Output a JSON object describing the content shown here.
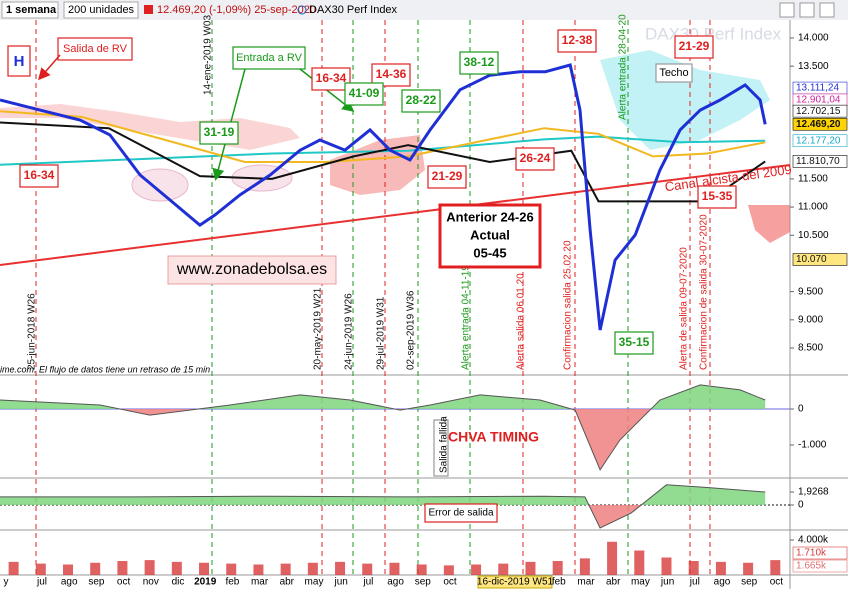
{
  "toolbar": {
    "period": "1 semana",
    "units": "200 unidades",
    "quote": "12.469,20 (-1,09%) 25-sep-2020",
    "instrument": "DAX30 Perf Index"
  },
  "notice": "ime.com. El flujo de datos tiene un retraso de 15 min",
  "watermark": "DAX30 Perf Index",
  "annotations": {
    "h": "H",
    "salida_de_rv": "Salida de RV",
    "entrada_a_rv": "Entrada a RV",
    "techo": "Techo",
    "website": "www.zonadebolsa.es",
    "channel": "Canal alcista del 2009",
    "error_de_salida": "Error de salida",
    "salida_fallida": "Salida fallida",
    "scores": [
      "16-34",
      "31-19",
      "16-34",
      "14-36",
      "41-09",
      "28-22",
      "38-12",
      "12-38",
      "21-29",
      "26-24",
      "21-29",
      "15-35",
      "35-15"
    ],
    "signal_box": [
      "Anterior 24-26",
      "Actual",
      "05-45"
    ]
  },
  "event_labels": [
    "25-jun-2018 W26",
    "14-ene-2019 W03",
    "20-may-2019 W21",
    "24-jun-2019 W26",
    "29-jul-2019 W31",
    "02-sep-2019 W36",
    "Alerta entrada 04-11-19",
    "Alerta salida 06.01.20",
    "Confirmacion salida 25.02.20",
    "Alerta entrada 28-04-20",
    "Alerta de salida 09-07-2020",
    "Confirmacion de salida 30-07-2020"
  ],
  "x_axis": {
    "labels": [
      "y",
      "jul",
      "ago",
      "sep",
      "oct",
      "nov",
      "dic",
      "2019",
      "feb",
      "mar",
      "abr",
      "may",
      "jun",
      "jul",
      "ago",
      "sep",
      "oct",
      null,
      null,
      null,
      "feb",
      "mar",
      "abr",
      "may",
      "jun",
      "jul",
      "ago",
      "sep",
      "oct"
    ],
    "highlight": "16-dic-2019 W51"
  },
  "chart_data": [
    {
      "type": "line",
      "xlim": [
        0,
        29.04
      ],
      "ylim": [
        8021,
        14319
      ],
      "yticks": [
        {
          "value": 14000,
          "label": "14.000"
        },
        {
          "value": 13500,
          "label": "13.500"
        },
        {
          "value": 11500,
          "label": "11.500"
        },
        {
          "value": 11000,
          "label": "11.000"
        },
        {
          "value": 10500,
          "label": "10.500"
        },
        {
          "value": 9500,
          "label": "9.500"
        },
        {
          "value": 9000,
          "label": "9.000"
        },
        {
          "value": 8500,
          "label": "8.500"
        }
      ],
      "series": [
        {
          "color": "#e83030",
          "x": [
            0,
            29.04
          ],
          "values": [
            9973,
            11747
          ]
        },
        {
          "color": "#21c7c7",
          "x": [
            0,
            5,
            10,
            15,
            20,
            22,
            25,
            28.13
          ],
          "values": [
            11750,
            11850,
            11950,
            12000,
            12200,
            12250,
            12150,
            12177
          ]
        },
        {
          "color": "#f2b820",
          "x": [
            0,
            3,
            6,
            9,
            12,
            15,
            18,
            20,
            22,
            24,
            26,
            28.13
          ],
          "values": [
            12700,
            12600,
            12200,
            11800,
            11800,
            11900,
            12200,
            12400,
            12300,
            11900,
            11950,
            12150
          ]
        },
        {
          "color": "#111111",
          "x": [
            0,
            4,
            7.35,
            10,
            13,
            15,
            18,
            21,
            22,
            24,
            26,
            28.13
          ],
          "values": [
            12500,
            12400,
            11550,
            11500,
            11900,
            12100,
            11800,
            12000,
            11100,
            11100,
            11100,
            11810
          ]
        },
        {
          "color": "#1f2fd6",
          "x": [
            0,
            1.47,
            2.94,
            4.04,
            5.15,
            6.25,
            7.35,
            7.9,
            8.82,
            9.93,
            11.03,
            11.76,
            12.68,
            13.6,
            14.34,
            15.07,
            15.81,
            16.91,
            18.01,
            19.12,
            20.04,
            20.96,
            21.32,
            21.69,
            22.06,
            22.61,
            23.35,
            24.26,
            25,
            25.74,
            26.47,
            27.39,
            27.94,
            28.13
          ],
          "values": [
            12900,
            12720,
            12545,
            12280,
            11570,
            11125,
            10680,
            10860,
            11215,
            11570,
            12010,
            12190,
            12010,
            12370,
            12010,
            11835,
            12370,
            13080,
            13340,
            13400,
            13400,
            13520,
            12720,
            10600,
            8820,
            10060,
            10505,
            11660,
            12370,
            12720,
            12900,
            13165,
            12900,
            12469
          ]
        }
      ],
      "price_tags": [
        {
          "value": 13111.24,
          "label": "13.111,24",
          "color": "#1f2fd6",
          "fill": "#ffffff"
        },
        {
          "value": 12901.04,
          "label": "12.901,04",
          "color": "#d0209a",
          "fill": "#ffffff"
        },
        {
          "value": 12702.15,
          "label": "12.702,15",
          "color": "#111111",
          "fill": "#ffffff"
        },
        {
          "value": 12469.2,
          "label": "12.469,20",
          "color": "#111111",
          "fill": "#ffd400"
        },
        {
          "value": 12177.2,
          "label": "12.177,20",
          "color": "#1aa8c8",
          "fill": "#ffffff"
        },
        {
          "value": 11810.7,
          "label": "11.810,70",
          "color": "#111111",
          "fill": "#ffffff"
        },
        {
          "value": 10070,
          "label": "10.070",
          "color": "#111111",
          "fill": "#ffe680"
        }
      ]
    },
    {
      "type": "area",
      "title": "CHVA TIMING",
      "xlim": [
        0,
        29.04
      ],
      "ylim": [
        -1917,
        944
      ],
      "yticks": [
        0,
        {
          "value": -1000,
          "label": "-1.000"
        }
      ],
      "positive_color": "#7ed67e",
      "negative_color": "#f08080",
      "x": [
        0,
        3.68,
        5.51,
        8.46,
        11.03,
        12.87,
        14.71,
        15.81,
        17.65,
        19.85,
        21.14,
        22.06,
        22.79,
        24.26,
        25.74,
        27.21,
        28.13
      ],
      "values": [
        250,
        110,
        -170,
        110,
        390,
        250,
        -30,
        110,
        390,
        250,
        -30,
        -1690,
        -860,
        250,
        670,
        530,
        250
      ]
    },
    {
      "type": "area",
      "xlim": [
        0,
        29.04
      ],
      "ylim": [
        -3.7,
        4.0
      ],
      "yticks": [
        {
          "value": 1.9268,
          "label": "1,9268"
        },
        0
      ],
      "positive_color": "#7ed67e",
      "negative_color": "#f08080",
      "x": [
        0,
        5,
        10,
        15,
        20,
        21.5,
        22.06,
        23.2,
        24.5,
        26,
        28.13
      ],
      "values": [
        1.2,
        1.2,
        1.3,
        1.2,
        1.3,
        1.2,
        -3.4,
        -1.2,
        3.0,
        2.6,
        1.9268
      ]
    },
    {
      "type": "bar",
      "xlim": [
        0,
        29.04
      ],
      "ylim": [
        0,
        5143
      ],
      "color": "#d83a3a",
      "yticks": [
        {
          "value": 4000,
          "label": "4.000k"
        }
      ],
      "x": [
        0.5,
        1.5,
        2.5,
        3.5,
        4.5,
        5.5,
        6.5,
        7.5,
        8.5,
        9.5,
        10.5,
        11.5,
        12.5,
        13.5,
        14.5,
        15.5,
        16.5,
        17.5,
        18.5,
        19.5,
        20.5,
        21.5,
        22.5,
        23.5,
        24.5,
        25.5,
        26.5,
        27.5,
        28.5
      ],
      "values": [
        1500,
        1300,
        1200,
        1400,
        1600,
        1700,
        1500,
        1400,
        1300,
        1200,
        1300,
        1400,
        1500,
        1300,
        1400,
        1200,
        1100,
        1200,
        1300,
        1500,
        1600,
        1900,
        3800,
        2800,
        2000,
        1600,
        1500,
        1400,
        1700
      ],
      "price_tags": [
        {
          "value": 1710,
          "label": "1.710k",
          "color": "#d83a3a",
          "fill": "#ffffff"
        },
        {
          "value": 1665,
          "label": "1.665k",
          "color": "#e07070",
          "fill": "#ffffff"
        }
      ]
    }
  ]
}
